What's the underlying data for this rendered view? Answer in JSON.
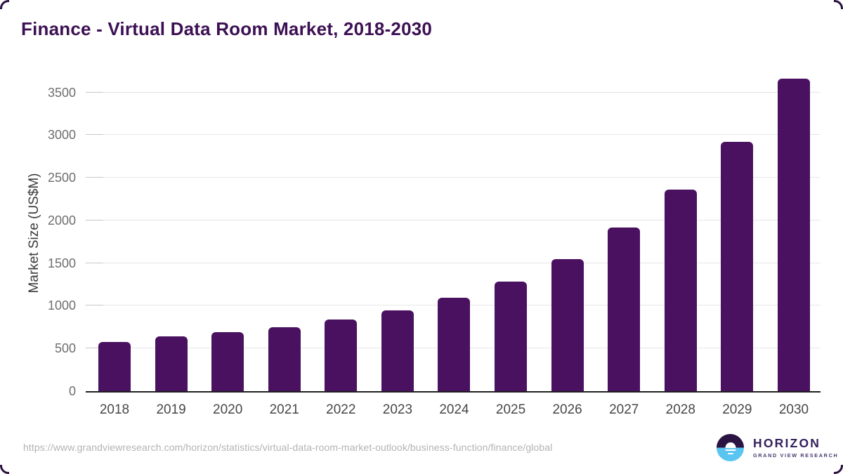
{
  "chart_data": {
    "type": "bar",
    "title": "Finance - Virtual Data Room Market, 2018-2030",
    "categories": [
      "2018",
      "2019",
      "2020",
      "2021",
      "2022",
      "2023",
      "2024",
      "2025",
      "2026",
      "2027",
      "2028",
      "2029",
      "2030"
    ],
    "values": [
      575,
      640,
      690,
      745,
      840,
      950,
      1095,
      1285,
      1550,
      1915,
      2360,
      2925,
      3665
    ],
    "xlabel": "",
    "ylabel": "Market Size (US$M)",
    "ylim": [
      0,
      3760
    ],
    "yticks": [
      0,
      500,
      1000,
      1500,
      2000,
      2500,
      3000,
      3500
    ],
    "grid": true,
    "legend": false,
    "bar_corner_radius": "rounded-top"
  },
  "footer": {
    "source_url": "https://www.grandviewresearch.com/horizon/statistics/virtual-data-room-market-outlook/business-function/finance/global",
    "logo": {
      "brand": "HORIZON",
      "subbrand": "GRAND VIEW RESEARCH"
    }
  },
  "colors": {
    "bar": "#4a1160",
    "title": "#3c1053",
    "axis_line": "#1f1f1f",
    "gridline": "#e6e6e6",
    "tick_mark": "#c7c7c7",
    "tick_text": "#6e6e6e",
    "url_text": "#b3b3b3",
    "corner_frame": "#2a1040",
    "logo_purple": "#33215c",
    "logo_dark": "#2b1444",
    "logo_blue": "#5bc5f2"
  }
}
